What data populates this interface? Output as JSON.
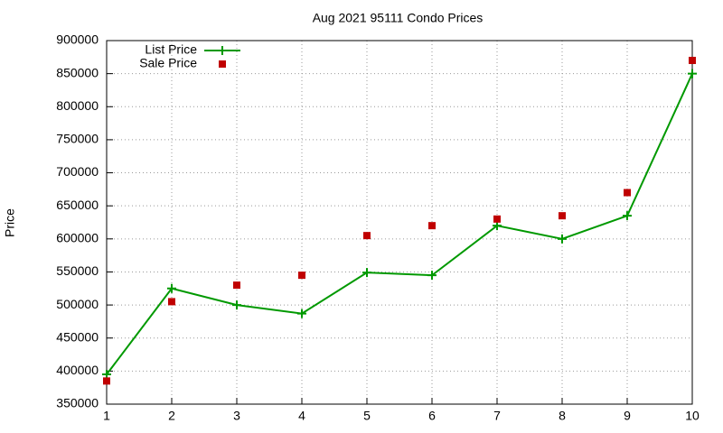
{
  "chart_data": {
    "type": "line",
    "title": "Aug 2021 95111 Condo Prices",
    "y_label": "Price",
    "x": [
      1,
      2,
      3,
      4,
      5,
      6,
      7,
      8,
      9,
      10
    ],
    "series": [
      {
        "name": "List Price",
        "color": "#009900",
        "style": "linespoints",
        "values": [
          395000,
          525000,
          500000,
          487000,
          549000,
          545000,
          620000,
          600000,
          635000,
          850000
        ]
      },
      {
        "name": "Sale Price",
        "color": "#c00000",
        "style": "points",
        "values": [
          385000,
          505000,
          530000,
          545000,
          605000,
          620000,
          630000,
          635000,
          670000,
          870000
        ]
      }
    ],
    "xlim": [
      1,
      10
    ],
    "xticks": [
      1,
      2,
      3,
      4,
      5,
      6,
      7,
      8,
      9,
      10
    ],
    "ylim": [
      350000,
      900000
    ],
    "yticks": [
      350000,
      400000,
      450000,
      500000,
      550000,
      600000,
      650000,
      700000,
      750000,
      800000,
      850000,
      900000
    ],
    "grid": true,
    "legend": "top-left"
  }
}
